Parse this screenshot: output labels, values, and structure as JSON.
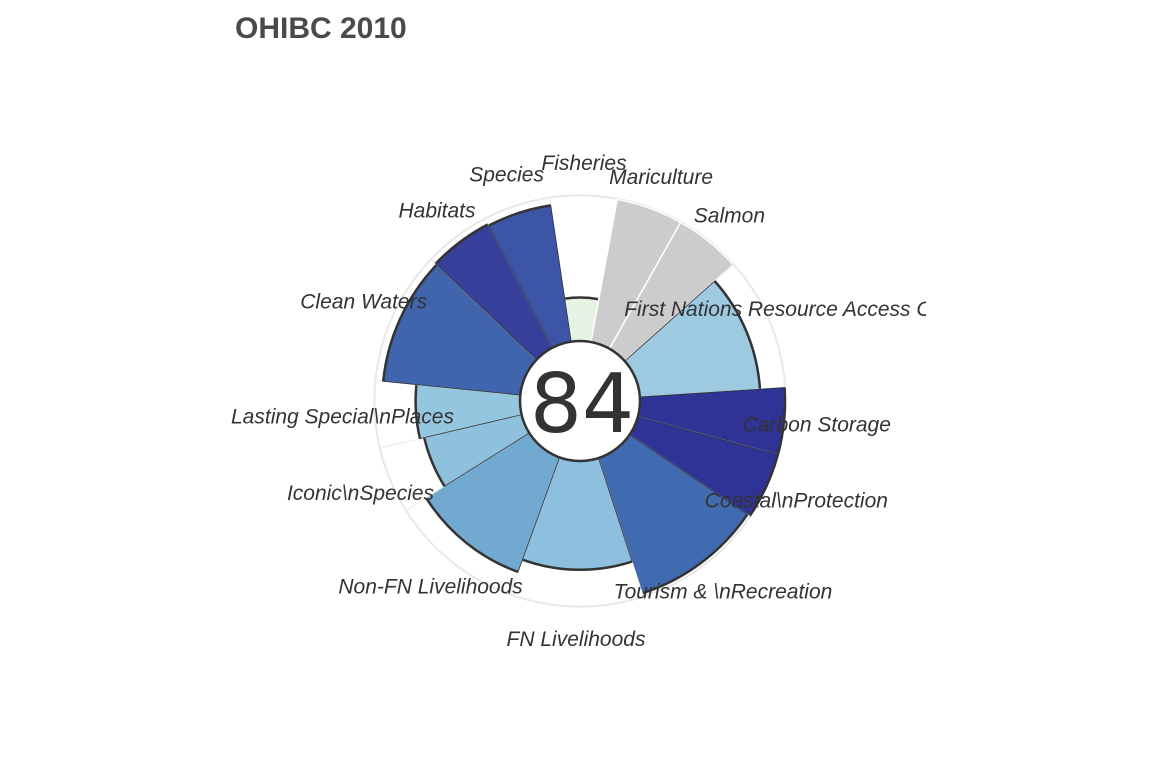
{
  "chart_data": {
    "type": "flower",
    "title": "OHIBC 2010",
    "center_score": "84",
    "max_score": 100,
    "goals": [
      {
        "name": "Fisheries",
        "label": "Fisheries",
        "score": 30,
        "weight": 1,
        "color": "#e6f3e3",
        "na": false
      },
      {
        "name": "Mariculture",
        "label": "Mariculture",
        "score": null,
        "weight": 1,
        "color": "#cccccc",
        "na": true
      },
      {
        "name": "Salmon",
        "label": "Salmon",
        "score": null,
        "weight": 1,
        "color": "#cccccc",
        "na": true
      },
      {
        "name": "First Nations Resource Access Opportunity",
        "label": "First Nations Resource Access Oppor",
        "score": 83,
        "weight": 2,
        "color": "#9ecae1",
        "na": false
      },
      {
        "name": "Carbon Storage",
        "label": "Carbon Storage",
        "score": 100,
        "weight": 1,
        "color": "#2e3395",
        "na": false
      },
      {
        "name": "Coastal Protection",
        "label": "Coastal\\nProtection",
        "score": 100,
        "weight": 1,
        "color": "#2e3395",
        "na": false
      },
      {
        "name": "Tourism & Recreation",
        "label": "Tourism & \\nRecreation",
        "score": 98,
        "weight": 2,
        "color": "#416bb1",
        "na": false
      },
      {
        "name": "FN Livelihoods",
        "label": "FN Livelihoods",
        "score": 75,
        "weight": 2,
        "color": "#8cc0de",
        "na": false
      },
      {
        "name": "Non-FN Livelihoods",
        "label": "Non-FN Livelihoods",
        "score": 84,
        "weight": 2,
        "color": "#72a9d0",
        "na": false
      },
      {
        "name": "Iconic Species",
        "label": "Iconic\\nSpecies",
        "score": 69,
        "weight": 1,
        "color": "#8ec1dc",
        "na": false
      },
      {
        "name": "Lasting Special Places",
        "label": "Lasting Special\\nPlaces",
        "score": 72,
        "weight": 1,
        "color": "#94c7df",
        "na": false
      },
      {
        "name": "Clean Waters",
        "label": "Clean Waters",
        "score": 95,
        "weight": 2,
        "color": "#4065ad",
        "na": false
      },
      {
        "name": "Habitats",
        "label": "Habitats",
        "score": 96,
        "weight": 1,
        "color": "#36409a",
        "na": false
      },
      {
        "name": "Species",
        "label": "Species",
        "score": 95,
        "weight": 1,
        "color": "#3d55a6",
        "na": false
      }
    ]
  }
}
